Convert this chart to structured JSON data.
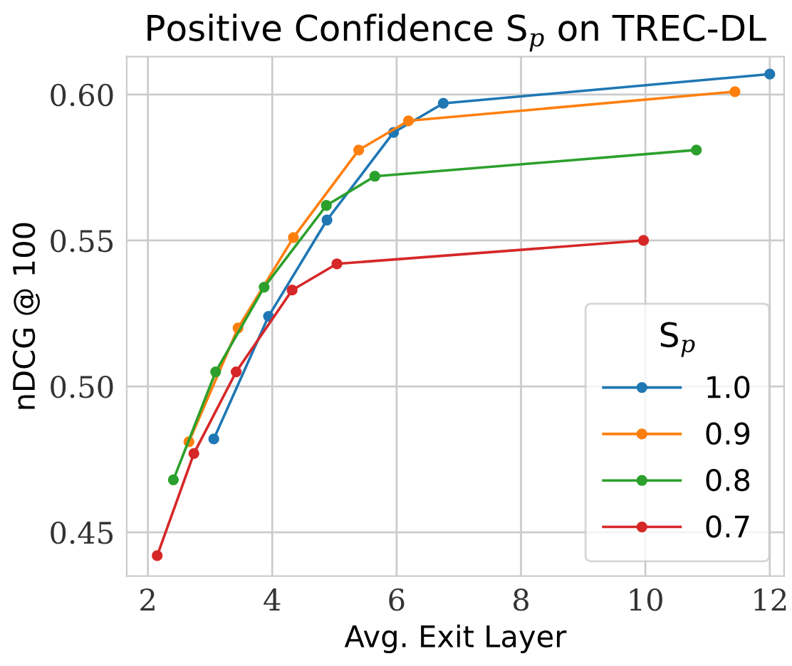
{
  "chart_data": {
    "type": "line",
    "title": "Positive Confidence S$_{p}$ on TREC-DL",
    "xlabel": "Avg. Exit Layer",
    "ylabel": "nDCG @ 100",
    "legend_title": "S$_{p}$",
    "xlim": [
      1.66,
      12.23
    ],
    "ylim": [
      0.435,
      0.613
    ],
    "xticks": [
      2,
      4,
      6,
      8,
      10,
      12
    ],
    "yticks": [
      {
        "value": 0.45,
        "label": "0.45"
      },
      {
        "value": 0.5,
        "label": "0.50"
      },
      {
        "value": 0.55,
        "label": "0.55"
      },
      {
        "value": 0.6,
        "label": "0.60"
      }
    ],
    "grid": true,
    "legend": "bottom right",
    "marker": "circle",
    "line_style": "solid",
    "series": [
      {
        "name": "1.0",
        "color": "#1f77b4",
        "x": [
          3.06,
          3.94,
          4.88,
          5.95,
          6.75,
          12.0
        ],
        "values": [
          0.482,
          0.524,
          0.557,
          0.587,
          0.597,
          0.607
        ]
      },
      {
        "name": "0.9",
        "color": "#ff7f0e",
        "x": [
          2.66,
          3.45,
          4.34,
          5.39,
          6.19,
          11.44
        ],
        "values": [
          0.481,
          0.52,
          0.551,
          0.581,
          0.591,
          0.601
        ]
      },
      {
        "name": "0.8",
        "color": "#2ca02c",
        "x": [
          2.41,
          3.09,
          3.87,
          4.87,
          5.65,
          10.82
        ],
        "values": [
          0.468,
          0.505,
          0.534,
          0.562,
          0.572,
          0.581
        ]
      },
      {
        "name": "0.7",
        "color": "#d62728",
        "x": [
          2.15,
          2.74,
          3.42,
          4.32,
          5.04,
          9.97
        ],
        "values": [
          0.442,
          0.477,
          0.505,
          0.533,
          0.542,
          0.55
        ]
      }
    ]
  }
}
